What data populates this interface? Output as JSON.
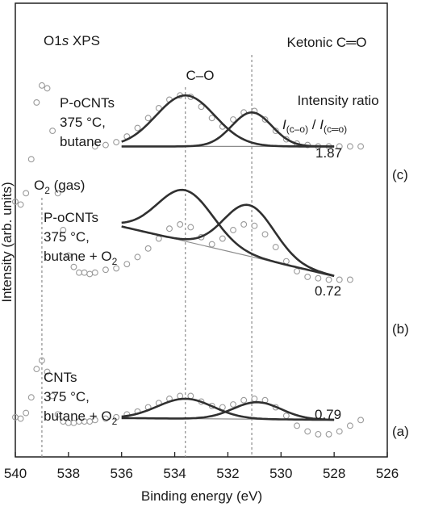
{
  "chart_data": {
    "type": "line",
    "title": "O1s XPS",
    "title_main": "O1",
    "title_italic": "s",
    "title_rest": " XPS",
    "xlabel": "Binding energy (eV)",
    "ylabel": "Intensity (arb. units)",
    "xlim": [
      540,
      526
    ],
    "x_reversed": true,
    "xticks": [
      540,
      538,
      536,
      534,
      532,
      530,
      528,
      526
    ],
    "ylim": [
      0,
      3.2
    ],
    "y_ticks_shown": false,
    "grid": false,
    "reference_lines": [
      {
        "label": "C–O",
        "x": 533.6
      },
      {
        "label": "Ketonic C═O",
        "x": 531.1
      },
      {
        "label": "O2 (gas)",
        "x": 539.0
      }
    ],
    "ratio_header": {
      "line1": "Intensity ratio",
      "i": "I",
      "sub_co": "(c–o)",
      "slash": " / ",
      "sub_ceo": "(c═o)"
    },
    "o2_label": {
      "main": "O",
      "sub": "2",
      "rest": " (gas)"
    },
    "series": [
      {
        "name": "(c)",
        "label_lines": [
          "P-oCNTs",
          "375 °C,",
          "butane"
        ],
        "label_o2": false,
        "ratio": "1.87",
        "x": [
          537.0,
          536.6,
          536.2,
          535.8,
          535.4,
          535.0,
          534.6,
          534.2,
          533.8,
          533.4,
          533.0,
          532.6,
          532.2,
          531.8,
          531.4,
          531.0,
          530.6,
          530.2,
          529.8,
          529.4,
          529.0,
          528.6,
          528.2,
          527.8,
          527.4,
          527.0
        ],
        "y": [
          2.19,
          2.2,
          2.22,
          2.26,
          2.32,
          2.39,
          2.46,
          2.52,
          2.55,
          2.54,
          2.47,
          2.39,
          2.33,
          2.38,
          2.43,
          2.44,
          2.38,
          2.3,
          2.24,
          2.21,
          2.2,
          2.19,
          2.19,
          2.19,
          2.19,
          2.19
        ],
        "fits": [
          {
            "center": 533.6,
            "sigma": 1.1,
            "height": 0.36
          },
          {
            "center": 531.1,
            "sigma": 0.75,
            "height": 0.24
          }
        ]
      },
      {
        "name": "(b)",
        "label_lines": [
          "P-oCNTs",
          "375 °C,"
        ],
        "label_last": {
          "main": "butane + O",
          "sub": "2"
        },
        "label_o2": true,
        "ratio": "0.72",
        "x": [
          540.0,
          539.8,
          539.6,
          539.4,
          539.2,
          539.0,
          538.8,
          538.6,
          538.4,
          538.2,
          538.0,
          537.8,
          537.6,
          537.4,
          537.2,
          537.0,
          536.6,
          536.2,
          535.8,
          535.4,
          535.0,
          534.6,
          534.2,
          533.8,
          533.4,
          533.0,
          532.6,
          532.2,
          531.8,
          531.4,
          531.0,
          530.6,
          530.2,
          529.8,
          529.4,
          529.0,
          528.6,
          528.2,
          527.8,
          527.4
        ],
        "y": [
          1.8,
          1.78,
          1.86,
          2.1,
          2.5,
          2.62,
          2.6,
          2.3,
          1.86,
          1.6,
          1.42,
          1.34,
          1.3,
          1.3,
          1.29,
          1.3,
          1.32,
          1.33,
          1.36,
          1.41,
          1.47,
          1.54,
          1.61,
          1.64,
          1.62,
          1.55,
          1.5,
          1.54,
          1.6,
          1.64,
          1.63,
          1.57,
          1.48,
          1.38,
          1.31,
          1.27,
          1.26,
          1.25,
          1.25,
          1.25
        ],
        "fits": [
          {
            "center": 533.6,
            "sigma": 1.05,
            "height": 0.36
          },
          {
            "center": 531.2,
            "sigma": 0.95,
            "height": 0.36
          }
        ]
      },
      {
        "name": "(a)",
        "label_lines": [
          "CNTs",
          "375 °C,"
        ],
        "label_last": {
          "main": "butane + O",
          "sub": "2"
        },
        "label_o2": false,
        "ratio": "0.79",
        "x": [
          540.0,
          539.8,
          539.6,
          539.4,
          539.2,
          539.0,
          538.8,
          538.6,
          538.4,
          538.2,
          538.0,
          537.8,
          537.6,
          537.4,
          537.2,
          537.0,
          536.6,
          536.2,
          535.8,
          535.4,
          535.0,
          534.6,
          534.2,
          533.8,
          533.4,
          533.0,
          532.6,
          532.2,
          531.8,
          531.4,
          531.0,
          530.6,
          530.2,
          529.8,
          529.4,
          529.0,
          528.6,
          528.2,
          527.8,
          527.4,
          527.0
        ],
        "y": [
          0.28,
          0.27,
          0.31,
          0.42,
          0.62,
          0.68,
          0.6,
          0.43,
          0.3,
          0.25,
          0.24,
          0.24,
          0.25,
          0.25,
          0.25,
          0.26,
          0.27,
          0.28,
          0.3,
          0.32,
          0.35,
          0.38,
          0.41,
          0.43,
          0.43,
          0.39,
          0.36,
          0.35,
          0.37,
          0.4,
          0.41,
          0.4,
          0.35,
          0.29,
          0.22,
          0.18,
          0.16,
          0.16,
          0.18,
          0.22,
          0.26
        ],
        "fits": [
          {
            "center": 533.6,
            "sigma": 1.05,
            "height": 0.14
          },
          {
            "center": 530.9,
            "sigma": 0.9,
            "height": 0.12
          }
        ]
      }
    ],
    "colors": {
      "data_markers": "#9a9a9a",
      "fit_line": "#303030",
      "baseline": "#8c8c8c",
      "reference_line": "#8c8c8c",
      "frame": "#202020"
    }
  }
}
